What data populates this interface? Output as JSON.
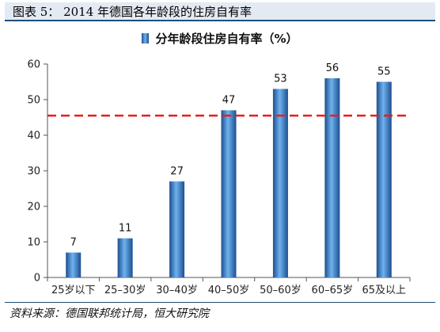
{
  "figure": {
    "title": "图表 5： 2014 年德国各年龄段的住房自有率",
    "source": "资料来源：德国联邦统计局，恒大研究院"
  },
  "chart_data": {
    "type": "bar",
    "categories": [
      "25岁以下",
      "25–30岁",
      "30–40岁",
      "40–50岁",
      "50–60岁",
      "60–65岁",
      "65及以上"
    ],
    "series": [
      {
        "name": "分年龄段住房自有率（%）",
        "values": [
          7,
          11,
          27,
          47,
          53,
          56,
          55
        ]
      }
    ],
    "data_labels": [
      "7",
      "11",
      "27",
      "47",
      "53",
      "56",
      "55"
    ],
    "yticks": [
      "0",
      "10",
      "20",
      "30",
      "40",
      "50",
      "60"
    ],
    "ylim": [
      0,
      60
    ],
    "reference_line": {
      "value": 45.5,
      "style": "dashed",
      "color": "#e8201c"
    },
    "legend_position": "top-center",
    "bar_color": "#2f6fb5",
    "grid": false
  }
}
